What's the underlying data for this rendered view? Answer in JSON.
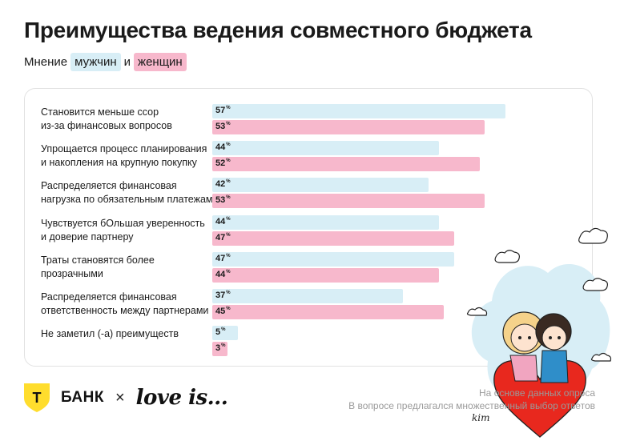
{
  "header": {
    "title": "Преимущества ведения совместного бюджета",
    "subtitle_prefix": "Мнение",
    "subtitle_men": "мужчин",
    "subtitle_and": "и",
    "subtitle_women": "женщин"
  },
  "chart_data": {
    "type": "bar",
    "orientation": "horizontal",
    "xlim": [
      0,
      60
    ],
    "grid": false,
    "categories": [
      [
        "Становится меньше ссор",
        "из-за финансовых вопросов"
      ],
      [
        "Упрощается процесс планирования",
        "и накопления на крупную покупку"
      ],
      [
        "Распределяется финансовая",
        "нагрузка по обязательным платежам"
      ],
      [
        "Чувствуется бОльшая уверенность",
        "и доверие партнеру"
      ],
      [
        "Траты становятся более",
        "прозрачными"
      ],
      [
        "Распределяется финансовая",
        "ответственность между партнерами"
      ],
      [
        "Не заметил (-а) преимуществ"
      ]
    ],
    "series": [
      {
        "name": "мужчин",
        "color": "#d8eef6",
        "values": [
          57,
          44,
          42,
          44,
          47,
          37,
          5
        ]
      },
      {
        "name": "женщин",
        "color": "#f7b8cc",
        "values": [
          53,
          52,
          53,
          47,
          44,
          45,
          3
        ]
      }
    ],
    "value_suffix": "%"
  },
  "footer": {
    "brand": "БАНК",
    "brand_letter": "Т",
    "times": "×",
    "partner": "love is...",
    "note1": "На основе данных опроса",
    "note2": "В вопросе предлагался множественный выбор ответов"
  },
  "illustration": {
    "signature": "kim"
  },
  "colors": {
    "men": "#d8eef6",
    "women": "#f7b8cc",
    "brand_yellow": "#ffdd2d"
  }
}
